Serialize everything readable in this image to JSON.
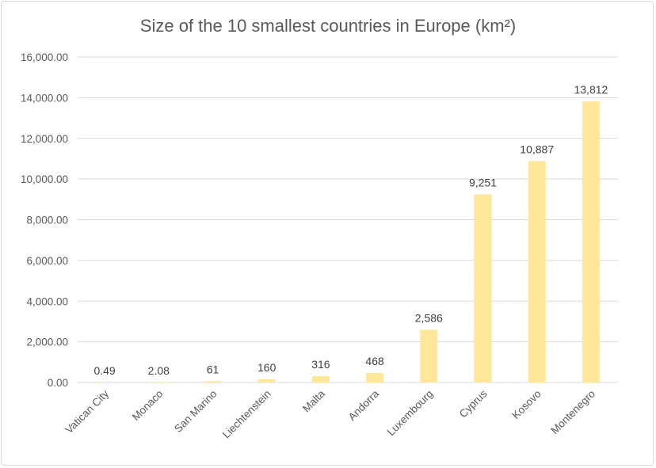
{
  "chart_data": {
    "type": "bar",
    "title": "Size of the 10 smallest countries in Europe (km²)",
    "categories": [
      "Vatican City",
      "Monaco",
      "San Marino",
      "Liechtenstein",
      "Malta",
      "Andorra",
      "Luxembourg",
      "Cyprus",
      "Kosovo",
      "Montenegro"
    ],
    "values": [
      0.49,
      2.08,
      61,
      160,
      316,
      468,
      2586,
      9251,
      10887,
      13812
    ],
    "data_labels": [
      "0.49",
      "2.08",
      "61",
      "160",
      "316",
      "468",
      "2,586",
      "9,251",
      "10,887",
      "13,812"
    ],
    "yticks": [
      "0.00",
      "2,000.00",
      "4,000.00",
      "6,000.00",
      "8,000.00",
      "10,000.00",
      "12,000.00",
      "14,000.00",
      "16,000.00"
    ],
    "ylim": [
      0,
      16000
    ],
    "xlabel": "",
    "ylabel": "",
    "grid": true,
    "legend": "none",
    "colors": {
      "bar": "#FFE699",
      "grid": "#d9d9d9",
      "text": "#595959"
    }
  }
}
